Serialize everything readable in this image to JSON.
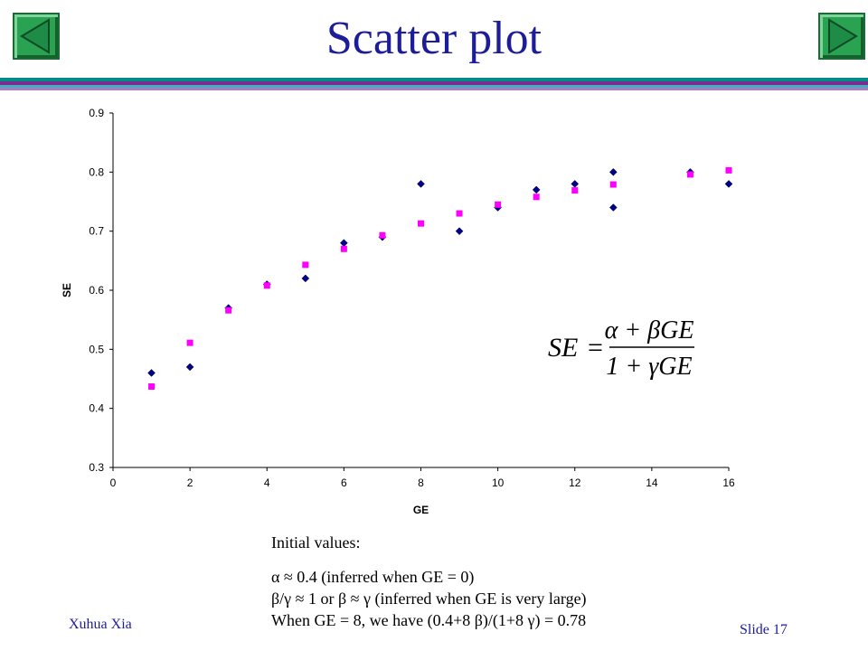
{
  "slide": {
    "title": "Scatter plot",
    "footer_author": "Xuhua Xia",
    "footer_slide": "Slide 17",
    "accent_colors": {
      "title": "#1d1d9a",
      "stripe_teal": "#008b8b",
      "stripe_purple": "#7b2c8c",
      "nav_green": "#29a352"
    }
  },
  "nav": {
    "prev_icon": "left-arrow-icon",
    "next_icon": "right-arrow-icon"
  },
  "formula": {
    "lhs": "SE",
    "numerator": "α + βGE",
    "denominator": "1 + γGE"
  },
  "notes": {
    "heading": "Initial values:",
    "line1": "α  ≈ 0.4 (inferred when GE = 0)",
    "line2": "β/γ ≈ 1 or β  ≈  γ (inferred when GE is very large)",
    "line3": "When GE = 8, we have (0.4+8 β)/(1+8 γ) = 0.78"
  },
  "chart_data": {
    "type": "scatter",
    "xlabel": "GE",
    "ylabel": "SE",
    "xlim": [
      0,
      16
    ],
    "ylim": [
      0.3,
      0.9
    ],
    "xticks": [
      "0",
      "2",
      "4",
      "6",
      "8",
      "10",
      "12",
      "14",
      "16"
    ],
    "yticks": [
      "0.3",
      "0.4",
      "0.5",
      "0.6",
      "0.7",
      "0.8",
      "0.9"
    ],
    "grid": false,
    "legend": "none",
    "series": [
      {
        "marker": "diamond",
        "color": "#00008b",
        "x": [
          1,
          2,
          3,
          4,
          5,
          6,
          7,
          8,
          9,
          10,
          11,
          12,
          13,
          13,
          15,
          16
        ],
        "y": [
          0.46,
          0.47,
          0.57,
          0.61,
          0.62,
          0.68,
          0.69,
          0.78,
          0.7,
          0.74,
          0.77,
          0.78,
          0.8,
          0.74,
          0.8,
          0.78
        ]
      },
      {
        "marker": "square",
        "color": "#ff00ff",
        "x": [
          1,
          2,
          3,
          4,
          5,
          6,
          7,
          8,
          9,
          10,
          11,
          12,
          13,
          15,
          16
        ],
        "y": [
          0.437,
          0.511,
          0.566,
          0.608,
          0.643,
          0.67,
          0.693,
          0.713,
          0.73,
          0.745,
          0.758,
          0.769,
          0.779,
          0.796,
          0.803
        ]
      }
    ]
  }
}
